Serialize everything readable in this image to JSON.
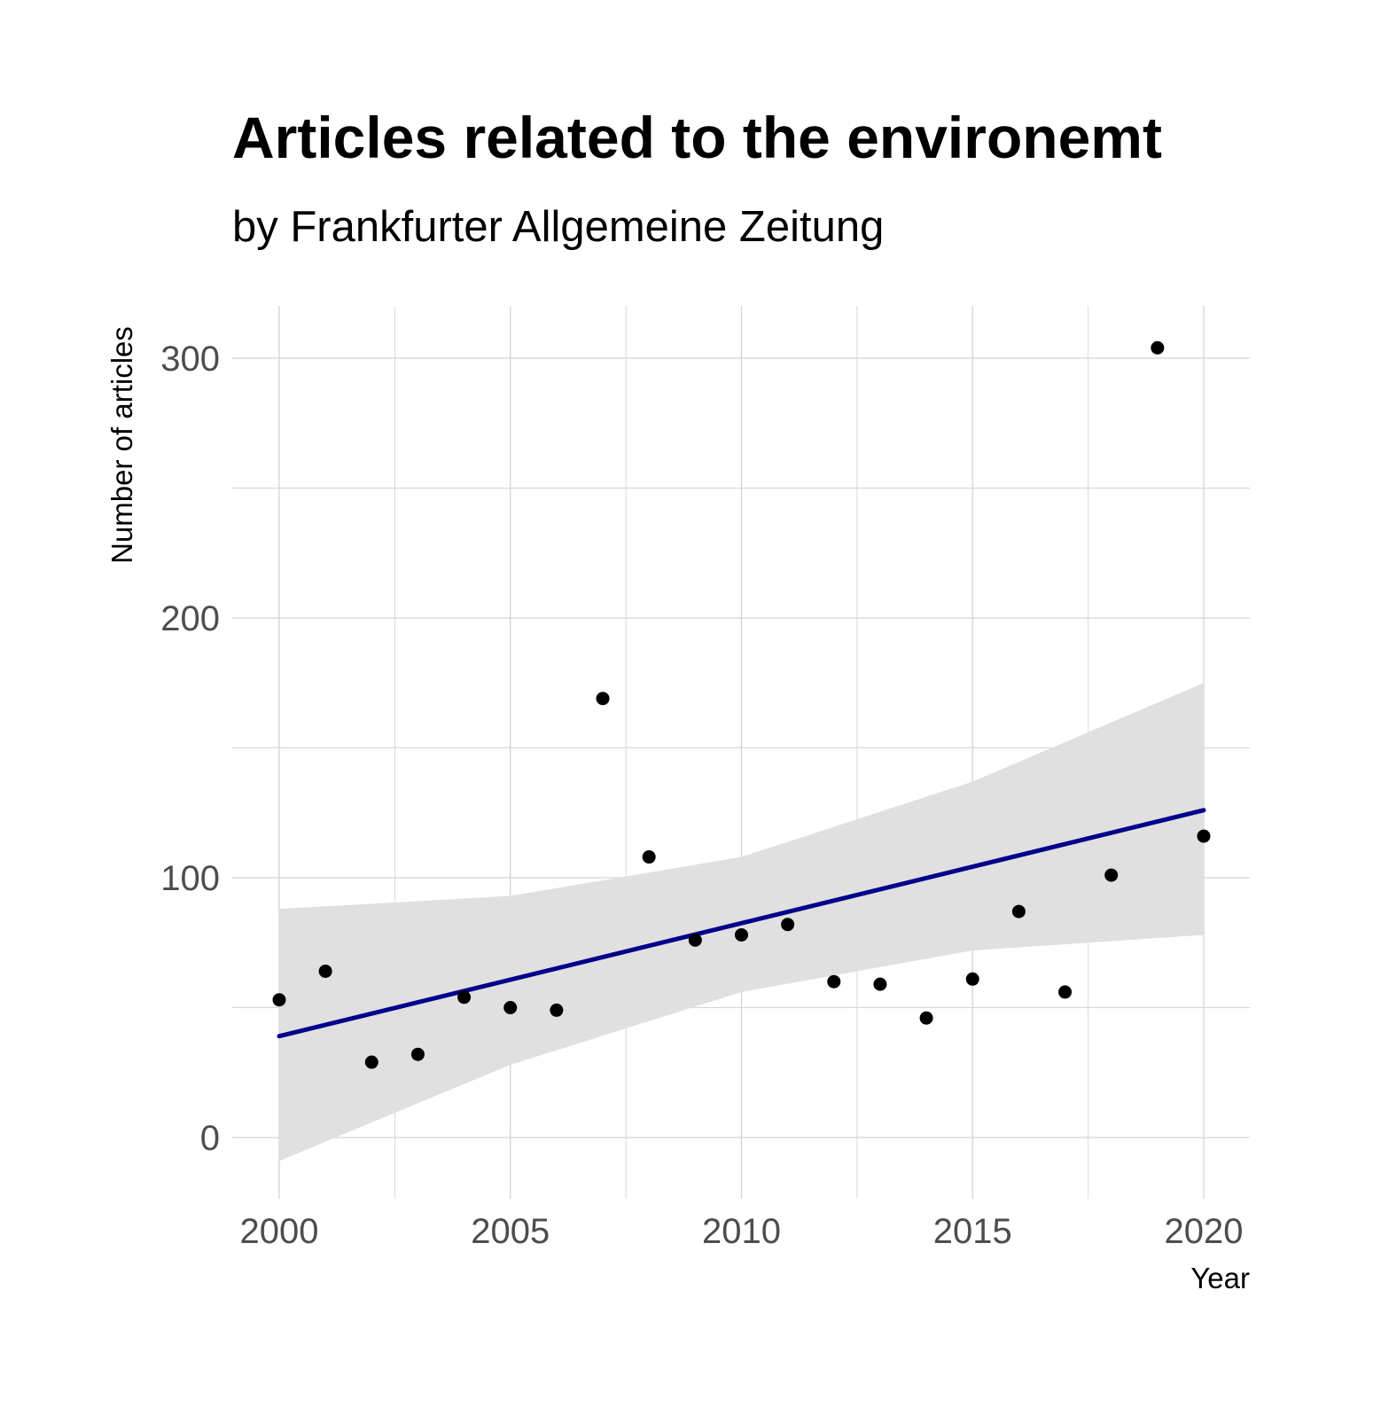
{
  "chart_data": {
    "type": "scatter",
    "title": "Articles related to the environemt",
    "subtitle": "by Frankfurter Allgemeine Zeitung",
    "xlabel": "Year",
    "ylabel": "Number of articles",
    "xlim": [
      1999,
      2021
    ],
    "ylim": [
      -25,
      320
    ],
    "x_ticks": [
      2000,
      2005,
      2010,
      2015,
      2020
    ],
    "y_ticks": [
      0,
      100,
      200,
      300
    ],
    "grid": true,
    "points": {
      "x": [
        2000,
        2001,
        2002,
        2003,
        2004,
        2005,
        2006,
        2007,
        2008,
        2009,
        2010,
        2011,
        2012,
        2013,
        2014,
        2015,
        2016,
        2017,
        2018,
        2019,
        2020
      ],
      "y": [
        53,
        64,
        29,
        32,
        54,
        50,
        49,
        169,
        108,
        76,
        78,
        82,
        60,
        59,
        46,
        61,
        87,
        56,
        101,
        304,
        116
      ]
    },
    "trend": {
      "method": "linear",
      "color": "#00008b",
      "x": [
        2000,
        2020
      ],
      "y": [
        39,
        126
      ],
      "band_lower": [
        -9,
        28,
        56,
        72,
        78
      ],
      "band_upper": [
        88,
        93,
        108,
        137,
        175
      ],
      "band_x": [
        2000,
        2005,
        2010,
        2015,
        2020
      ],
      "band_color": "#e0e0e0"
    },
    "point_color": "#000000"
  }
}
